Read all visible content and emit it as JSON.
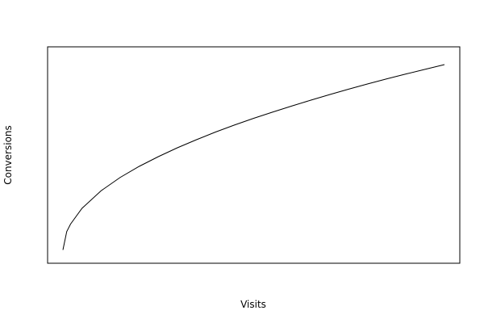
{
  "chart_data": {
    "type": "line",
    "title": "",
    "xlabel": "Visits",
    "ylabel": "Conversions",
    "x_ticks_visible": false,
    "y_ticks_visible": false,
    "grid": false,
    "legend": "none",
    "xlim": [
      0,
      100
    ],
    "ylim": [
      0,
      100
    ],
    "line_color": "#000000",
    "series": [
      {
        "x": [
          0,
          1,
          2,
          5,
          10,
          15,
          20,
          25,
          30,
          35,
          40,
          45,
          50,
          55,
          60,
          65,
          70,
          75,
          80,
          85,
          90,
          95,
          100
        ],
        "y": [
          3.4,
          12.5,
          16.2,
          24.0,
          32.7,
          39.3,
          44.8,
          49.6,
          54.0,
          58.0,
          61.8,
          65.3,
          68.6,
          71.7,
          74.7,
          77.6,
          80.4,
          83.1,
          85.7,
          88.2,
          90.6,
          92.9,
          95.2
        ]
      }
    ]
  }
}
